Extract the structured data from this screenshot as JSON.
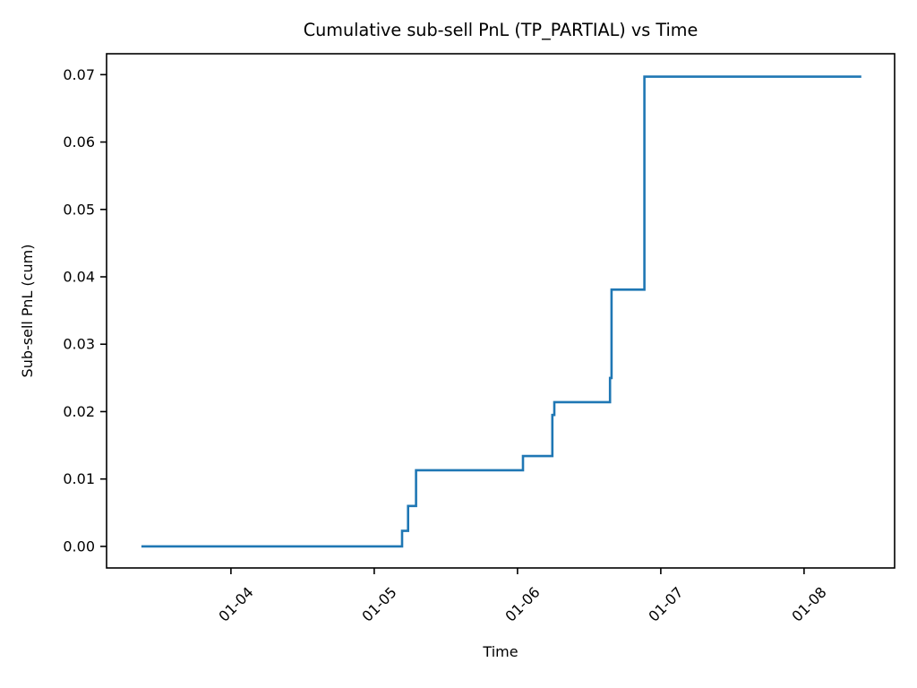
{
  "title": "Cumulative sub-sell PnL (TP_PARTIAL) vs Time",
  "chart_data": {
    "type": "line",
    "subtype": "step-post",
    "title": "Cumulative sub-sell PnL (TP_PARTIAL) vs Time",
    "xlabel": "Time",
    "ylabel": "Sub-sell PnL (cum)",
    "grid": false,
    "legend": "none",
    "line_color": "#1f77b4",
    "axis_color": "#000000",
    "x_tick_labels": [
      "01-04",
      "01-05",
      "01-06",
      "01-07",
      "01-08"
    ],
    "y_tick_values": [
      0.0,
      0.01,
      0.02,
      0.03,
      0.04,
      0.05,
      0.06,
      0.07
    ],
    "y_tick_labels": [
      "0.00",
      "0.01",
      "0.02",
      "0.03",
      "0.04",
      "0.05",
      "0.06",
      "0.07"
    ],
    "xlim": [
      "01-03 03:10",
      "01-08 15:10"
    ],
    "ylim": [
      -0.0032,
      0.0731
    ],
    "series": [
      {
        "name": "Cumulative sub-sell PnL (cum)",
        "points": [
          [
            "01-03 09:00",
            0.0
          ],
          [
            "01-05 04:40",
            0.0023
          ],
          [
            "01-05 05:40",
            0.006
          ],
          [
            "01-05 07:00",
            0.0113
          ],
          [
            "01-06 00:55",
            0.0134
          ],
          [
            "01-06 05:50",
            0.0195
          ],
          [
            "01-06 06:10",
            0.0214
          ],
          [
            "01-06 15:30",
            0.025
          ],
          [
            "01-06 15:45",
            0.0381
          ],
          [
            "01-06 21:15",
            0.0697
          ],
          [
            "01-08 09:35",
            0.0697
          ]
        ]
      }
    ]
  }
}
